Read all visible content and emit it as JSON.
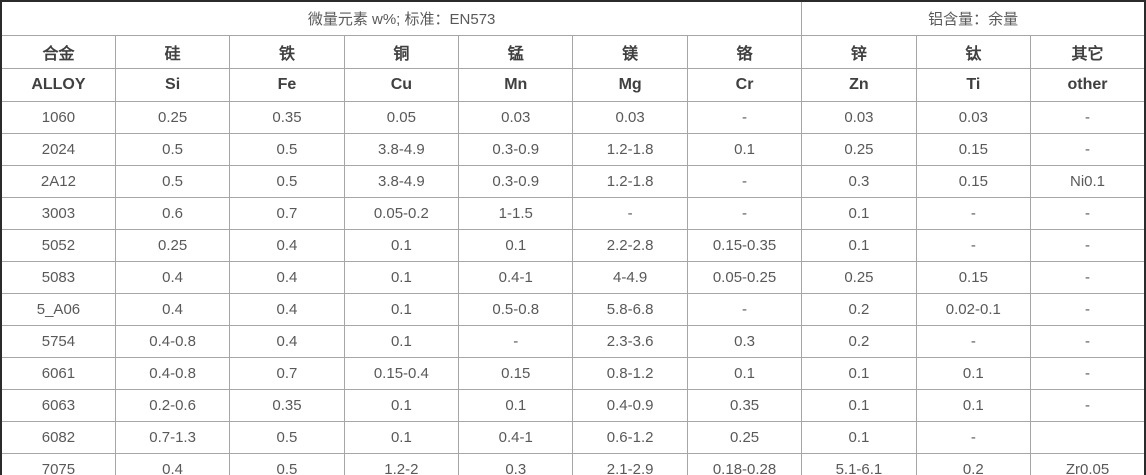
{
  "table": {
    "group_headers": [
      {
        "label": "微量元素 w%; 标准：EN573",
        "colspan": 7
      },
      {
        "label": "铝含量：余量",
        "colspan": 3
      }
    ],
    "columns_cn": [
      "合金",
      "硅",
      "铁",
      "铜",
      "锰",
      "镁",
      "铬",
      "锌",
      "钛",
      "其它"
    ],
    "columns_en": [
      "ALLOY",
      "Si",
      "Fe",
      "Cu",
      "Mn",
      "Mg",
      "Cr",
      "Zn",
      "Ti",
      "other"
    ],
    "rows": [
      [
        "1060",
        "0.25",
        "0.35",
        "0.05",
        "0.03",
        "0.03",
        "-",
        "0.03",
        "0.03",
        "-"
      ],
      [
        "2024",
        "0.5",
        "0.5",
        "3.8-4.9",
        "0.3-0.9",
        "1.2-1.8",
        "0.1",
        "0.25",
        "0.15",
        "-"
      ],
      [
        "2A12",
        "0.5",
        "0.5",
        "3.8-4.9",
        "0.3-0.9",
        "1.2-1.8",
        "-",
        "0.3",
        "0.15",
        "Ni0.1"
      ],
      [
        "3003",
        "0.6",
        "0.7",
        "0.05-0.2",
        "1-1.5",
        "-",
        "-",
        "0.1",
        "-",
        "-"
      ],
      [
        "5052",
        "0.25",
        "0.4",
        "0.1",
        "0.1",
        "2.2-2.8",
        "0.15-0.35",
        "0.1",
        "-",
        "-"
      ],
      [
        "5083",
        "0.4",
        "0.4",
        "0.1",
        "0.4-1",
        "4-4.9",
        "0.05-0.25",
        "0.25",
        "0.15",
        "-"
      ],
      [
        "5_A06",
        "0.4",
        "0.4",
        "0.1",
        "0.5-0.8",
        "5.8-6.8",
        "-",
        "0.2",
        "0.02-0.1",
        "-"
      ],
      [
        "5754",
        "0.4-0.8",
        "0.4",
        "0.1",
        "-",
        "2.3-3.6",
        "0.3",
        "0.2",
        "-",
        "-"
      ],
      [
        "6061",
        "0.4-0.8",
        "0.7",
        "0.15-0.4",
        "0.15",
        "0.8-1.2",
        "0.1",
        "0.1",
        "0.1",
        "-"
      ],
      [
        "6063",
        "0.2-0.6",
        "0.35",
        "0.1",
        "0.1",
        "0.4-0.9",
        "0.35",
        "0.1",
        "0.1",
        "-"
      ],
      [
        "6082",
        "0.7-1.3",
        "0.5",
        "0.1",
        "0.4-1",
        "0.6-1.2",
        "0.25",
        "0.1",
        "-",
        ""
      ],
      [
        "7075",
        "0.4",
        "0.5",
        "1.2-2",
        "0.3",
        "2.1-2.9",
        "0.18-0.28",
        "5.1-6.1",
        "0.2",
        "Zr0.05"
      ]
    ],
    "colors": {
      "border_outer": "#2b2b2b",
      "border_inner": "#a6a6a6",
      "header_text": "#404040",
      "body_text": "#595959",
      "background": "#ffffff"
    }
  }
}
